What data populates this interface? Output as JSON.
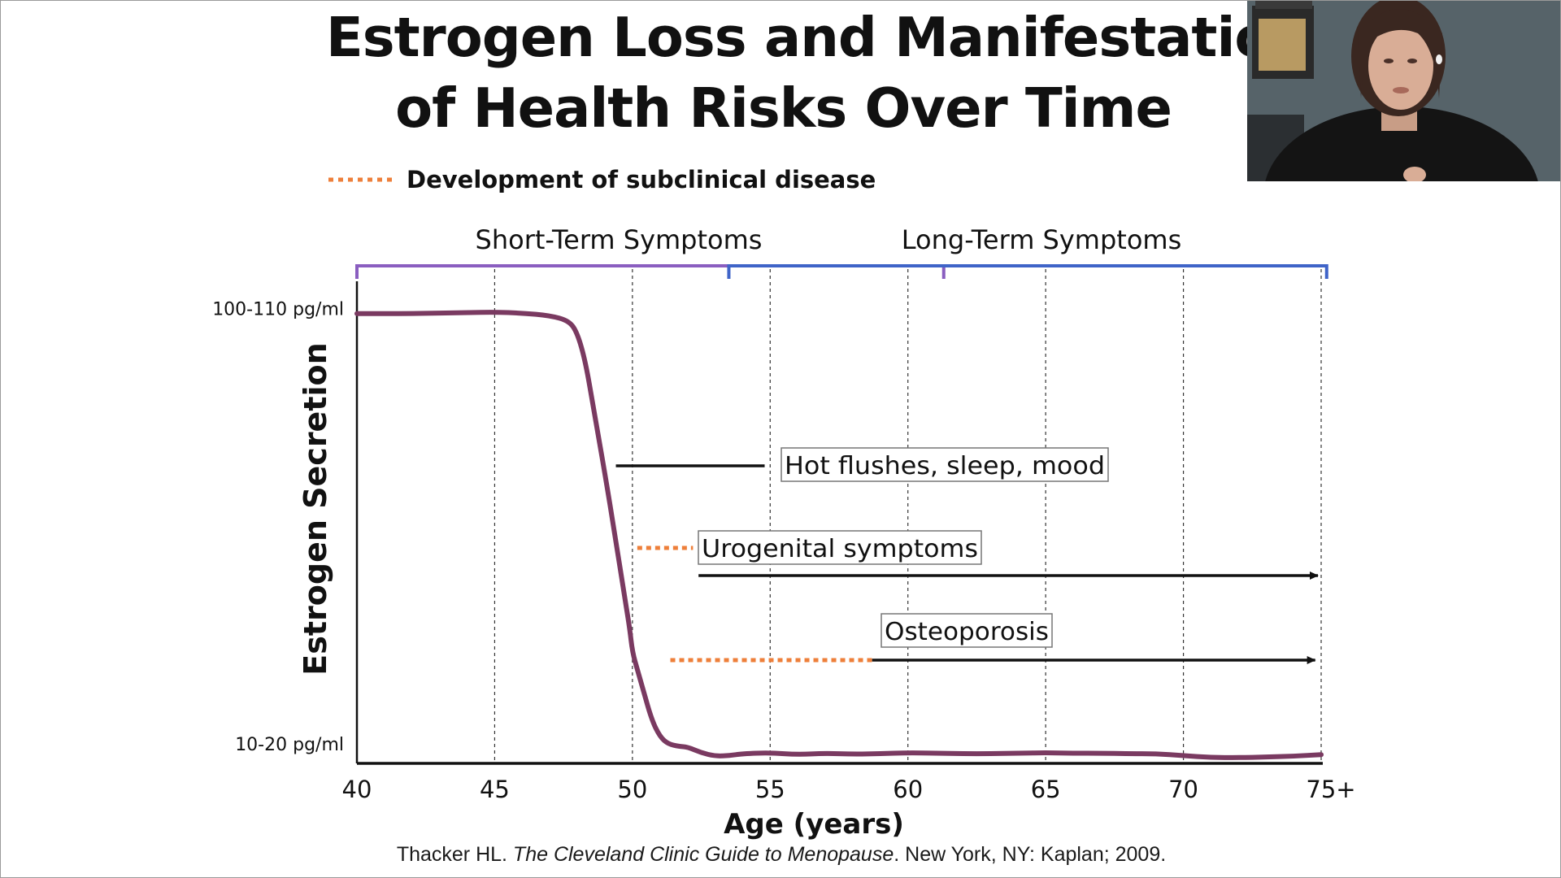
{
  "slide": {
    "title_line_1": "Estrogen Loss and Manifestation",
    "title_line_2": "of Health Risks Over Time"
  },
  "citation": {
    "author": "Thacker HL. ",
    "book": "The Cleveland Clinic Guide to Menopause",
    "rest": ". New York, NY: Kaplan; 2009."
  },
  "colors": {
    "curve": "#7a3a61",
    "short_term_bracket": "#8a5ec0",
    "long_term_bracket": "#3f64c8",
    "subclinical_dots": "#ee7f3a",
    "text": "#111111"
  },
  "webcam": {
    "icon": "presenter-video-icon"
  },
  "chart_data": {
    "type": "line",
    "title": "Estrogen Loss and Manifestation of Health Risks Over Time",
    "xlabel": "Age (years)",
    "ylabel": "Estrogen Secretion",
    "x_ticks": [
      "40",
      "45",
      "50",
      "55",
      "60",
      "65",
      "70",
      "75+"
    ],
    "x_tick_values": [
      40,
      45,
      50,
      55,
      60,
      65,
      70,
      75
    ],
    "xlim": [
      40,
      75
    ],
    "y_ticks": [
      "100-110 pg/ml",
      "10-20 pg/ml"
    ],
    "y_tick_values": [
      105,
      15
    ],
    "ylim": [
      12,
      110
    ],
    "grid": "vertical dashed at every x tick",
    "legend": {
      "position": "top-left",
      "entries": [
        {
          "label": "Development of subclinical disease",
          "style": "orange dotted line"
        }
      ]
    },
    "series": [
      {
        "name": "Estrogen secretion",
        "x": [
          40,
          42,
          44,
          45,
          46,
          47,
          47.7,
          48,
          48.3,
          48.6,
          49,
          49.4,
          49.7,
          49.9,
          50,
          50.2,
          50.4,
          50.7,
          51,
          51.3,
          51.7,
          52,
          52.5,
          53,
          53.5,
          54,
          55,
          56,
          57,
          58,
          59,
          60,
          61,
          62,
          63,
          64,
          65,
          66,
          67,
          68,
          69,
          70,
          71,
          72,
          73,
          74,
          75
        ],
        "y": [
          105,
          105,
          105.2,
          105.3,
          105.1,
          104.6,
          103.5,
          101,
          95,
          85,
          72,
          58,
          47,
          40,
          35,
          31,
          27,
          21,
          17.5,
          16,
          15.5,
          15.4,
          14.2,
          13.5,
          13.6,
          14,
          14.2,
          13.8,
          14.1,
          13.9,
          14,
          14.2,
          14.1,
          14,
          14,
          14.1,
          14.2,
          14.1,
          14.1,
          14,
          14,
          13.6,
          13.2,
          13.2,
          13.3,
          13.5,
          13.8
        ]
      }
    ],
    "symptom_periods": [
      {
        "label": "Short-Term Symptoms",
        "start": 40,
        "end": 61.3,
        "bracket_color": "short_term"
      },
      {
        "label": "Long-Term Symptoms",
        "start": 53.5,
        "end": 75.2,
        "bracket_color": "long_term"
      }
    ],
    "annotations": [
      {
        "label": "Hot flushes, sleep, mood",
        "y_level": 64,
        "subclinical_from": null,
        "line_from": 49.4,
        "line_to": 54.8,
        "arrow": false
      },
      {
        "label": "Urogenital symptoms",
        "y_level": 46,
        "subclinical_from": 50,
        "subclinical_to": 52.2,
        "line_from": 52.4,
        "line_to": 75,
        "arrow": true
      },
      {
        "label": "Osteoporosis",
        "y_level": 28,
        "subclinical_from": 51.2,
        "subclinical_to": 58.7,
        "line_from": 58.7,
        "line_to": 74.9,
        "arrow": true
      }
    ]
  }
}
